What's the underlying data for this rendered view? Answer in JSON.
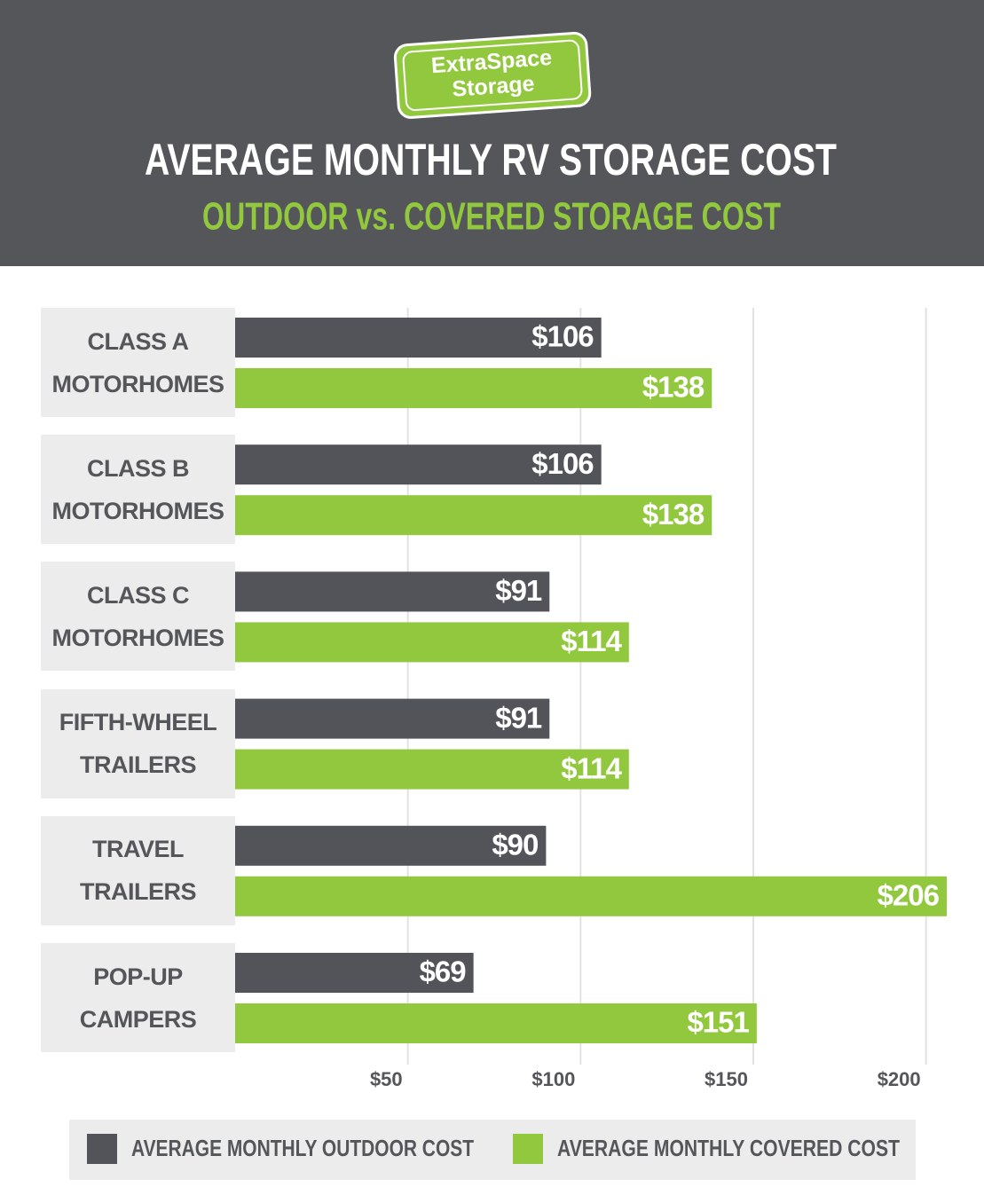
{
  "logo": {
    "line1": "ExtraSpace",
    "line2": "Storage"
  },
  "chart_data": {
    "type": "hbar",
    "title": "AVERAGE MONTHLY RV STORAGE COST",
    "subtitle": "OUTDOOR vs. COVERED STORAGE COST",
    "categories": [
      "CLASS A MOTORHOMES",
      "CLASS B MOTORHOMES",
      "CLASS C MOTORHOMES",
      "FIFTH-WHEEL TRAILERS",
      "TRAVEL TRAILERS",
      "POP-UP CAMPERS"
    ],
    "series": [
      {
        "name": "AVERAGE MONTHLY OUTDOOR COST",
        "color": "#535459",
        "values": [
          106,
          106,
          91,
          91,
          90,
          69
        ],
        "value_labels": [
          "$106",
          "$106",
          "$91",
          "$91",
          "$90",
          "$69"
        ]
      },
      {
        "name": "AVERAGE MONTHLY COVERED COST",
        "color": "#92c83e",
        "values": [
          138,
          138,
          114,
          114,
          206,
          151
        ],
        "value_labels": [
          "$138",
          "$138",
          "$114",
          "$114",
          "$206",
          "$151"
        ]
      }
    ],
    "xlim": [
      0,
      206
    ],
    "xticks": [
      {
        "value": 50,
        "label": "$50"
      },
      {
        "value": 100,
        "label": "$100"
      },
      {
        "value": 150,
        "label": "$150"
      },
      {
        "value": 200,
        "label": "$200"
      }
    ],
    "grid": true
  }
}
